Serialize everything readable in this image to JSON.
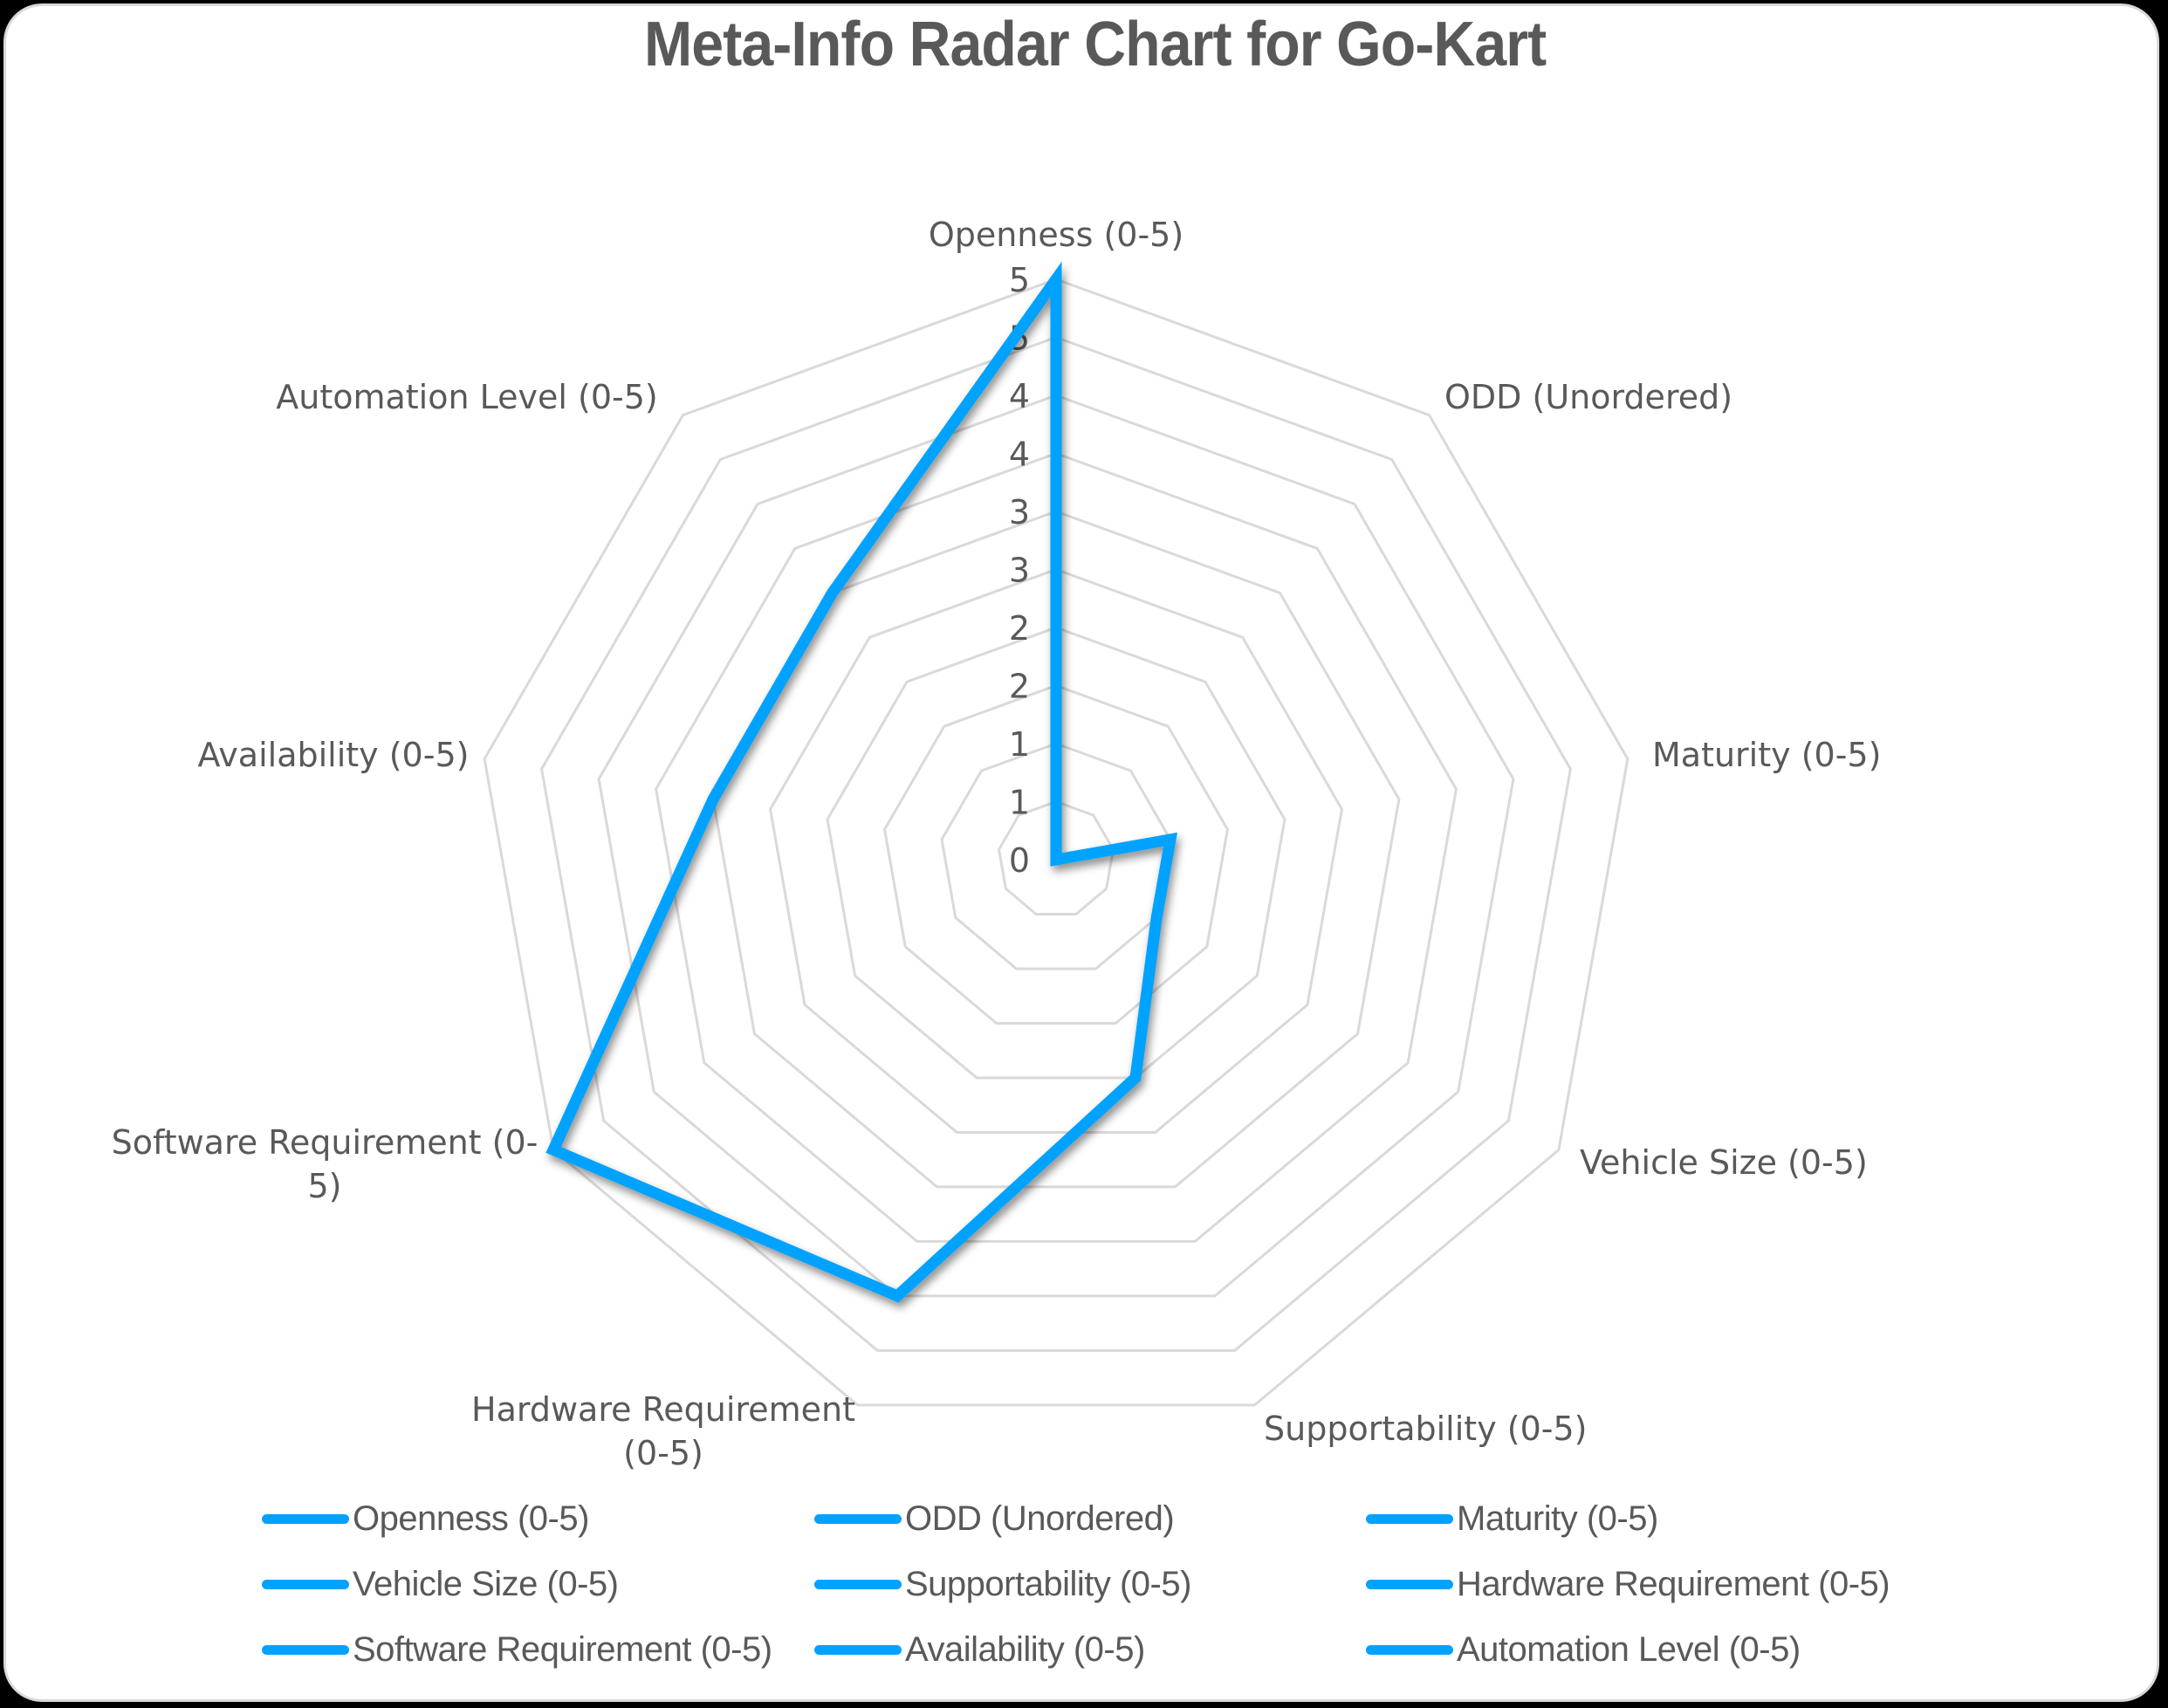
{
  "title": "Meta-Info Radar Chart for Go-Kart",
  "colors": {
    "series": "#00a2ff",
    "grid": "#d9d9d9",
    "text": "#595959",
    "background": "#ffffff",
    "outer": "#000000"
  },
  "chart_data": {
    "type": "radar",
    "title": "Meta-Info Radar Chart for Go-Kart",
    "categories": [
      "Openness (0-5)",
      "ODD (Unordered)",
      "Maturity (0-5)",
      "Vehicle Size (0-5)",
      "Supportability (0-5)",
      "Hardware Requirement (0-5)",
      "Software Requirement (0-5)",
      "Availability (0-5)",
      "Automation Level (0-5)"
    ],
    "series": [
      {
        "name": "Go-Kart",
        "values": [
          5,
          0,
          1,
          1,
          2,
          4,
          5,
          3,
          3
        ]
      }
    ],
    "rlim": [
      0,
      5
    ],
    "grid_step": 0.5,
    "tick_labels": [
      "0",
      "1",
      "1",
      "2",
      "2",
      "3",
      "3",
      "4",
      "4",
      "5",
      "5"
    ],
    "grid": true,
    "legend_position": "bottom",
    "legend_entries": [
      "Openness (0-5)",
      "ODD (Unordered)",
      "Maturity (0-5)",
      "Vehicle Size (0-5)",
      "Supportability (0-5)",
      "Hardware Requirement (0-5)",
      "Software Requirement (0-5)",
      "Availability (0-5)",
      "Automation Level (0-5)"
    ]
  },
  "axis_labels": [
    {
      "lines": [
        "Openness (0-5)"
      ]
    },
    {
      "lines": [
        "ODD (Unordered)"
      ]
    },
    {
      "lines": [
        "Maturity (0-5)"
      ]
    },
    {
      "lines": [
        "Vehicle Size (0-5)"
      ]
    },
    {
      "lines": [
        "Supportability (0-5)"
      ]
    },
    {
      "lines": [
        "Hardware Requirement",
        "(0-5)"
      ]
    },
    {
      "lines": [
        "Software Requirement (0-",
        "5)"
      ]
    },
    {
      "lines": [
        "Availability (0-5)"
      ]
    },
    {
      "lines": [
        "Automation Level (0-5)"
      ]
    }
  ],
  "legend": {
    "items": [
      {
        "label": "Openness (0-5)"
      },
      {
        "label": "ODD (Unordered)"
      },
      {
        "label": "Maturity (0-5)"
      },
      {
        "label": "Vehicle Size (0-5)"
      },
      {
        "label": "Supportability (0-5)"
      },
      {
        "label": "Hardware Requirement (0-5)"
      },
      {
        "label": "Software Requirement (0-5)"
      },
      {
        "label": "Availability (0-5)"
      },
      {
        "label": "Automation Level (0-5)"
      }
    ]
  }
}
